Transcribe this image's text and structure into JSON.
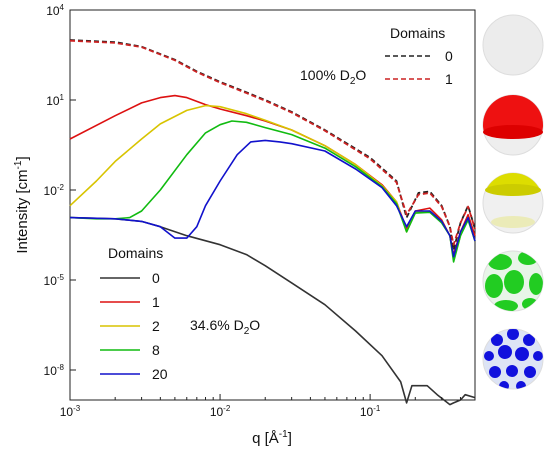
{
  "chart_data": {
    "type": "line",
    "xlabel": "q [Å",
    "xlabel_sup": "-1",
    "xlabel_end": "]",
    "ylabel": "Intensity [cm",
    "ylabel_sup": "-1",
    "ylabel_end": "]",
    "x_scale": "log",
    "y_scale": "log",
    "xlim": [
      0.001,
      0.5
    ],
    "ylim": [
      1e-09,
      10000
    ],
    "x_ticks": [
      {
        "value": 0.001,
        "base": "10",
        "exp": "-3"
      },
      {
        "value": 0.01,
        "base": "10",
        "exp": "-2"
      },
      {
        "value": 0.1,
        "base": "10",
        "exp": "-1"
      }
    ],
    "y_ticks": [
      {
        "value": 10000,
        "base": "10",
        "exp": "4"
      },
      {
        "value": 10,
        "base": "10",
        "exp": "1"
      },
      {
        "value": 0.01,
        "base": "10",
        "exp": "-2"
      },
      {
        "value": 1e-05,
        "base": "10",
        "exp": "-5"
      },
      {
        "value": 1e-08,
        "base": "10",
        "exp": "-8"
      }
    ],
    "grid": false,
    "annotations": [
      {
        "text_main": "100% D",
        "text_sub": "2",
        "text_end": "O",
        "position": "upper-middle"
      },
      {
        "text_main": "34.6% D",
        "text_sub": "2",
        "text_end": "O",
        "position": "lower-middle"
      }
    ],
    "legends": [
      {
        "title": "Domains",
        "placement": "top-right",
        "entries": [
          {
            "label": "0",
            "color": "#222222",
            "dash": true
          },
          {
            "label": "1",
            "color": "#cc2222",
            "dash": true
          }
        ]
      },
      {
        "title": "Domains",
        "placement": "bottom-left",
        "entries": [
          {
            "label": "0",
            "color": "#333333",
            "dash": false
          },
          {
            "label": "1",
            "color": "#dd1111",
            "dash": false
          },
          {
            "label": "2",
            "color": "#d8c400",
            "dash": false
          },
          {
            "label": "8",
            "color": "#11bb11",
            "dash": false
          },
          {
            "label": "20",
            "color": "#1111cc",
            "dash": false
          }
        ]
      }
    ],
    "series": [
      {
        "color": "#222222",
        "dashed": true,
        "points": [
          [
            0.001,
            1000
          ],
          [
            0.002,
            850
          ],
          [
            0.003,
            600
          ],
          [
            0.005,
            220
          ],
          [
            0.007,
            90
          ],
          [
            0.01,
            40
          ],
          [
            0.015,
            18
          ],
          [
            0.02,
            10
          ],
          [
            0.03,
            4
          ],
          [
            0.05,
            1
          ],
          [
            0.1,
            0.12
          ],
          [
            0.15,
            0.02
          ],
          [
            0.175,
            0.0012
          ],
          [
            0.21,
            0.008
          ],
          [
            0.25,
            0.009
          ],
          [
            0.3,
            0.003
          ],
          [
            0.34,
            0.0006
          ],
          [
            0.36,
            0.0001
          ],
          [
            0.4,
            0.0008
          ],
          [
            0.45,
            0.003
          ],
          [
            0.5,
            0.0005
          ]
        ]
      },
      {
        "color": "#cc2222",
        "dashed": true,
        "points": [
          [
            0.001,
            950
          ],
          [
            0.002,
            800
          ],
          [
            0.003,
            580
          ],
          [
            0.005,
            210
          ],
          [
            0.007,
            85
          ],
          [
            0.01,
            38
          ],
          [
            0.015,
            17
          ],
          [
            0.02,
            9.5
          ],
          [
            0.03,
            3.8
          ],
          [
            0.05,
            0.95
          ],
          [
            0.1,
            0.11
          ],
          [
            0.15,
            0.018
          ],
          [
            0.175,
            0.0015
          ],
          [
            0.21,
            0.007
          ],
          [
            0.25,
            0.008
          ],
          [
            0.3,
            0.0028
          ],
          [
            0.34,
            0.0006
          ],
          [
            0.36,
            0.00015
          ],
          [
            0.4,
            0.0008
          ],
          [
            0.45,
            0.0028
          ],
          [
            0.5,
            0.0005
          ]
        ]
      },
      {
        "color": "#333333",
        "dashed": false,
        "points": [
          [
            0.001,
            0.0012
          ],
          [
            0.002,
            0.0011
          ],
          [
            0.003,
            0.0009
          ],
          [
            0.004,
            0.0006
          ],
          [
            0.006,
            0.0003
          ],
          [
            0.01,
            0.00015
          ],
          [
            0.015,
            7e-05
          ],
          [
            0.02,
            3e-05
          ],
          [
            0.03,
            8e-06
          ],
          [
            0.05,
            1.5e-06
          ],
          [
            0.08,
            2e-07
          ],
          [
            0.12,
            3e-08
          ],
          [
            0.16,
            4e-09
          ],
          [
            0.175,
            8e-10
          ],
          [
            0.19,
            3e-09
          ],
          [
            0.24,
            3e-09
          ],
          [
            0.28,
            1.5e-09
          ],
          [
            0.34,
            7e-10
          ],
          [
            0.36,
            8e-10
          ],
          [
            0.4,
            1e-09
          ],
          [
            0.43,
            1.5e-09
          ],
          [
            0.5,
            1.2e-09
          ]
        ]
      },
      {
        "color": "#dd1111",
        "dashed": false,
        "points": [
          [
            0.001,
            0.5
          ],
          [
            0.002,
            3
          ],
          [
            0.003,
            8
          ],
          [
            0.004,
            12
          ],
          [
            0.005,
            14
          ],
          [
            0.006,
            12
          ],
          [
            0.008,
            7
          ],
          [
            0.01,
            5
          ],
          [
            0.015,
            3
          ],
          [
            0.02,
            2
          ],
          [
            0.03,
            1
          ],
          [
            0.05,
            0.3
          ],
          [
            0.08,
            0.07
          ],
          [
            0.12,
            0.015
          ],
          [
            0.15,
            0.004
          ],
          [
            0.175,
            0.0005
          ],
          [
            0.2,
            0.002
          ],
          [
            0.25,
            0.0025
          ],
          [
            0.3,
            0.001
          ],
          [
            0.34,
            0.0003
          ],
          [
            0.36,
            7e-05
          ],
          [
            0.4,
            0.0004
          ],
          [
            0.45,
            0.0015
          ],
          [
            0.5,
            0.0003
          ]
        ]
      },
      {
        "color": "#d8c400",
        "dashed": false,
        "points": [
          [
            0.001,
            0.003
          ],
          [
            0.0015,
            0.02
          ],
          [
            0.002,
            0.09
          ],
          [
            0.003,
            0.5
          ],
          [
            0.004,
            1.6
          ],
          [
            0.006,
            4.5
          ],
          [
            0.008,
            6.5
          ],
          [
            0.01,
            6
          ],
          [
            0.015,
            3.5
          ],
          [
            0.02,
            2.1
          ],
          [
            0.03,
            1
          ],
          [
            0.05,
            0.3
          ],
          [
            0.08,
            0.07
          ],
          [
            0.12,
            0.014
          ],
          [
            0.15,
            0.004
          ],
          [
            0.175,
            0.0004
          ],
          [
            0.2,
            0.0018
          ],
          [
            0.25,
            0.002
          ],
          [
            0.3,
            0.0009
          ],
          [
            0.34,
            0.0003
          ],
          [
            0.36,
            5e-05
          ],
          [
            0.4,
            0.0003
          ],
          [
            0.45,
            0.0012
          ],
          [
            0.5,
            0.0002
          ]
        ]
      },
      {
        "color": "#11bb11",
        "dashed": false,
        "points": [
          [
            0.001,
            0.0012
          ],
          [
            0.0015,
            0.0011
          ],
          [
            0.002,
            0.0011
          ],
          [
            0.0025,
            0.0012
          ],
          [
            0.003,
            0.002
          ],
          [
            0.004,
            0.01
          ],
          [
            0.006,
            0.15
          ],
          [
            0.008,
            0.8
          ],
          [
            0.01,
            1.5
          ],
          [
            0.012,
            2
          ],
          [
            0.015,
            1.8
          ],
          [
            0.02,
            1.2
          ],
          [
            0.03,
            0.7
          ],
          [
            0.05,
            0.25
          ],
          [
            0.08,
            0.06
          ],
          [
            0.12,
            0.013
          ],
          [
            0.15,
            0.0035
          ],
          [
            0.175,
            0.0004
          ],
          [
            0.2,
            0.0017
          ],
          [
            0.25,
            0.0018
          ],
          [
            0.3,
            0.0008
          ],
          [
            0.34,
            0.0003
          ],
          [
            0.36,
            4e-05
          ],
          [
            0.4,
            0.0003
          ],
          [
            0.45,
            0.001
          ],
          [
            0.5,
            0.0002
          ]
        ]
      },
      {
        "color": "#1111cc",
        "dashed": false,
        "points": [
          [
            0.001,
            0.0012
          ],
          [
            0.002,
            0.0011
          ],
          [
            0.003,
            0.0009
          ],
          [
            0.004,
            0.0006
          ],
          [
            0.005,
            0.00025
          ],
          [
            0.006,
            0.00025
          ],
          [
            0.007,
            0.0006
          ],
          [
            0.008,
            0.003
          ],
          [
            0.01,
            0.02
          ],
          [
            0.013,
            0.15
          ],
          [
            0.016,
            0.4
          ],
          [
            0.02,
            0.45
          ],
          [
            0.025,
            0.4
          ],
          [
            0.03,
            0.35
          ],
          [
            0.05,
            0.2
          ],
          [
            0.08,
            0.05
          ],
          [
            0.12,
            0.012
          ],
          [
            0.15,
            0.003
          ],
          [
            0.175,
            0.0006
          ],
          [
            0.2,
            0.002
          ],
          [
            0.25,
            0.002
          ],
          [
            0.3,
            0.0009
          ],
          [
            0.34,
            0.0003
          ],
          [
            0.36,
            6e-05
          ],
          [
            0.4,
            0.0004
          ],
          [
            0.45,
            0.0012
          ],
          [
            0.5,
            0.0002
          ]
        ]
      }
    ]
  },
  "spheres": [
    {
      "icon": "plain-sphere-icon",
      "color": "#e6e6e6",
      "pattern": "none"
    },
    {
      "icon": "red-cap-sphere-icon",
      "color": "#ee1111",
      "pattern": "cap"
    },
    {
      "icon": "yellow-band-sphere-icon",
      "color": "#dddd00",
      "pattern": "band"
    },
    {
      "icon": "green-patch-sphere-icon",
      "color": "#22cc22",
      "pattern": "patches"
    },
    {
      "icon": "blue-dot-sphere-icon",
      "color": "#1111dd",
      "pattern": "dots"
    }
  ]
}
